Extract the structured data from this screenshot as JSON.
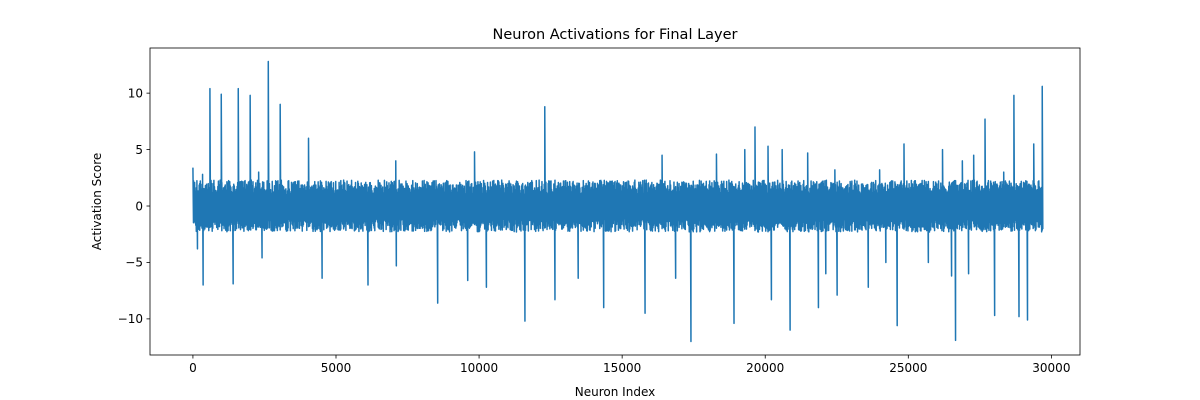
{
  "chart_data": {
    "type": "line",
    "title": "Neuron Activations for Final Layer",
    "xlabel": "Neuron Index",
    "ylabel": "Activation Score",
    "xlim": [
      -1500,
      31000
    ],
    "ylim": [
      -13.2,
      14.0
    ],
    "xticks": [
      0,
      5000,
      10000,
      15000,
      20000,
      25000,
      30000
    ],
    "yticks": [
      -10,
      -5,
      0,
      5,
      10
    ],
    "xtick_labels": [
      "0",
      "5000",
      "10000",
      "15000",
      "20000",
      "25000",
      "30000"
    ],
    "ytick_labels": [
      "−10",
      "−5",
      "0",
      "5",
      "10"
    ],
    "grid": false,
    "legend": "none",
    "series": [
      {
        "color": "#1f77b4",
        "n_points": 29700,
        "typical_range": [
          -2.3,
          2.3
        ],
        "peaks": [
          {
            "x": 0,
            "y": 3.4
          },
          {
            "x": 150,
            "y": -3.8
          },
          {
            "x": 350,
            "y": 2.8
          },
          {
            "x": 350,
            "y": -7.0
          },
          {
            "x": 600,
            "y": 10.4
          },
          {
            "x": 1000,
            "y": 9.9
          },
          {
            "x": 1400,
            "y": -6.9
          },
          {
            "x": 1600,
            "y": 10.4
          },
          {
            "x": 2000,
            "y": 9.8
          },
          {
            "x": 2300,
            "y": 3.0
          },
          {
            "x": 2400,
            "y": -4.6
          },
          {
            "x": 2650,
            "y": 12.8
          },
          {
            "x": 3050,
            "y": 9.0
          },
          {
            "x": 4050,
            "y": 6.0
          },
          {
            "x": 4500,
            "y": -6.4
          },
          {
            "x": 6100,
            "y": -7.0
          },
          {
            "x": 7100,
            "y": 4.0
          },
          {
            "x": 7100,
            "y": -5.3
          },
          {
            "x": 8550,
            "y": -8.6
          },
          {
            "x": 9600,
            "y": -6.6
          },
          {
            "x": 9850,
            "y": 4.8
          },
          {
            "x": 10250,
            "y": -7.2
          },
          {
            "x": 11600,
            "y": -10.2
          },
          {
            "x": 12300,
            "y": 8.8
          },
          {
            "x": 12650,
            "y": -8.3
          },
          {
            "x": 13450,
            "y": -6.4
          },
          {
            "x": 14350,
            "y": -9.0
          },
          {
            "x": 15800,
            "y": -9.5
          },
          {
            "x": 16400,
            "y": 4.5
          },
          {
            "x": 16850,
            "y": -6.4
          },
          {
            "x": 17400,
            "y": -12.0
          },
          {
            "x": 18300,
            "y": 4.6
          },
          {
            "x": 18900,
            "y": -10.4
          },
          {
            "x": 19300,
            "y": 5.0
          },
          {
            "x": 19650,
            "y": 7.0
          },
          {
            "x": 20100,
            "y": 5.3
          },
          {
            "x": 20200,
            "y": -8.3
          },
          {
            "x": 20600,
            "y": 5.0
          },
          {
            "x": 20850,
            "y": -11.0
          },
          {
            "x": 21500,
            "y": 4.7
          },
          {
            "x": 21850,
            "y": -9.0
          },
          {
            "x": 22100,
            "y": -6.0
          },
          {
            "x": 22450,
            "y": 3.2
          },
          {
            "x": 22500,
            "y": -7.9
          },
          {
            "x": 23600,
            "y": -7.2
          },
          {
            "x": 24000,
            "y": 3.2
          },
          {
            "x": 24200,
            "y": -5.0
          },
          {
            "x": 24600,
            "y": -10.6
          },
          {
            "x": 24850,
            "y": 5.5
          },
          {
            "x": 25700,
            "y": -5.0
          },
          {
            "x": 26200,
            "y": 5.0
          },
          {
            "x": 26500,
            "y": -6.2
          },
          {
            "x": 26650,
            "y": -11.9
          },
          {
            "x": 26900,
            "y": 4.0
          },
          {
            "x": 27100,
            "y": -6.0
          },
          {
            "x": 27300,
            "y": 4.5
          },
          {
            "x": 27700,
            "y": 7.7
          },
          {
            "x": 28000,
            "y": -9.7
          },
          {
            "x": 28350,
            "y": 3.0
          },
          {
            "x": 28700,
            "y": 9.8
          },
          {
            "x": 28850,
            "y": -9.8
          },
          {
            "x": 29150,
            "y": -10.1
          },
          {
            "x": 29400,
            "y": 5.5
          },
          {
            "x": 29700,
            "y": 10.6
          }
        ]
      }
    ]
  }
}
